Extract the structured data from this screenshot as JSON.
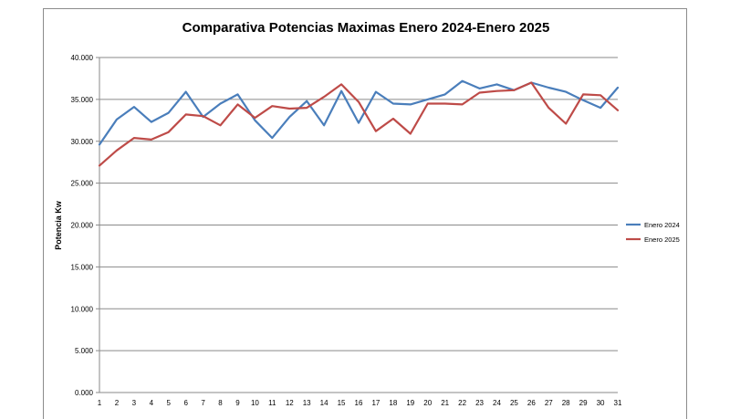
{
  "chart_data": {
    "type": "line",
    "title": "Comparativa Potencias Maximas Enero 2024-Enero 2025",
    "xlabel": "",
    "ylabel": "Potencia Kw",
    "x": [
      1,
      2,
      3,
      4,
      5,
      6,
      7,
      8,
      9,
      10,
      11,
      12,
      13,
      14,
      15,
      16,
      17,
      18,
      19,
      20,
      21,
      22,
      23,
      24,
      25,
      26,
      27,
      28,
      29,
      30,
      31
    ],
    "ylim": [
      0,
      40000
    ],
    "yticks": [
      0,
      5000,
      10000,
      15000,
      20000,
      25000,
      30000,
      35000,
      40000
    ],
    "ytick_labels": [
      "0.000",
      "5.000",
      "10.000",
      "15.000",
      "20.000",
      "25.000",
      "30.000",
      "35.000",
      "40.000"
    ],
    "grid": "horizontal",
    "legend_position": "right",
    "series": [
      {
        "name": "Enero 2024",
        "color": "#4a7ebb",
        "values": [
          29600,
          32600,
          34100,
          32300,
          33400,
          35900,
          32900,
          34500,
          35600,
          32500,
          30400,
          32900,
          34800,
          31900,
          36000,
          32200,
          35900,
          34500,
          34400,
          35000,
          35600,
          37200,
          36300,
          36800,
          36100,
          37000,
          36400,
          35900,
          34900,
          34000,
          36400
        ]
      },
      {
        "name": "Enero 2025",
        "color": "#be4b48",
        "values": [
          27100,
          28900,
          30400,
          30200,
          31100,
          33200,
          33000,
          31900,
          34400,
          32800,
          34200,
          33900,
          34000,
          35300,
          36800,
          34700,
          31200,
          32700,
          30900,
          34500,
          34500,
          34400,
          35800,
          36000,
          36100,
          37000,
          34000,
          32100,
          35600,
          35500,
          33700
        ]
      }
    ]
  }
}
